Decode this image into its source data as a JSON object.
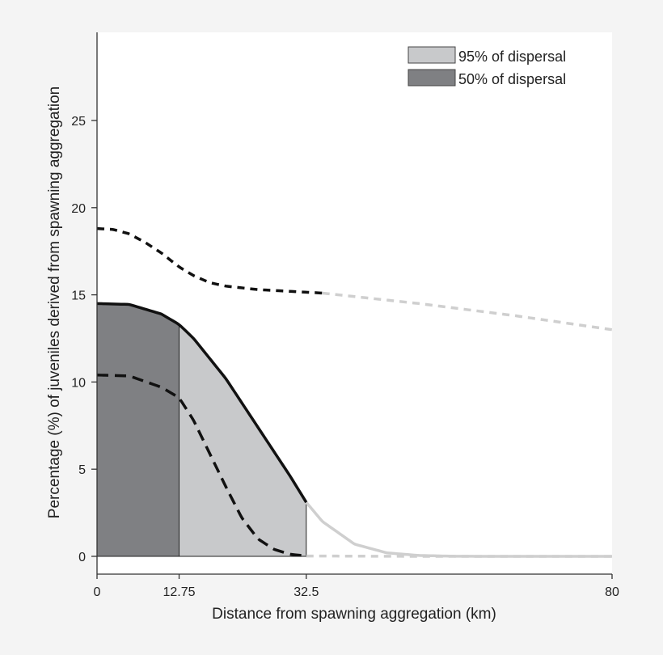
{
  "chart_data": {
    "type": "line",
    "xlabel": "Distance from spawning aggregation (km)",
    "ylabel": "Percentage (%) of juveniles derived from spawning aggregation",
    "xlim": [
      0,
      80
    ],
    "ylim": [
      0,
      30
    ],
    "x_ticks": [
      "0",
      "12.75",
      "32.5",
      "80"
    ],
    "y_ticks": [
      "0",
      "5",
      "10",
      "15",
      "20",
      "25"
    ],
    "grid": false,
    "legend_position": "top-right",
    "legend": [
      {
        "label": "95% of dispersal",
        "color": "#c8c9cb"
      },
      {
        "label": "50% of dispersal",
        "color": "#7f8083"
      }
    ],
    "shaded_regions": [
      {
        "label": "50% of dispersal",
        "x_range": [
          0,
          12.75
        ],
        "color": "#7f8083"
      },
      {
        "label": "95% of dispersal",
        "x_range": [
          12.75,
          32.5
        ],
        "color": "#c8c9cb"
      }
    ],
    "series": [
      {
        "style": "solid",
        "highlight_until": 32.5,
        "x": [
          0,
          5,
          10,
          12.75,
          15,
          20,
          25,
          30,
          32.5,
          35,
          40,
          45,
          50,
          55,
          60,
          80
        ],
        "y": [
          14.5,
          14.45,
          13.9,
          13.3,
          12.5,
          10.2,
          7.4,
          4.6,
          3.1,
          2.0,
          0.7,
          0.2,
          0.05,
          0.01,
          0,
          0
        ]
      },
      {
        "style": "dashed-upper",
        "highlight_until": 35,
        "x": [
          0,
          2.5,
          5,
          7.5,
          10,
          12.75,
          15,
          17.5,
          20,
          25,
          30,
          35,
          50,
          65,
          80
        ],
        "y": [
          18.8,
          18.75,
          18.5,
          18.0,
          17.4,
          16.6,
          16.1,
          15.7,
          15.5,
          15.3,
          15.2,
          15.1,
          14.5,
          13.8,
          13.0
        ]
      },
      {
        "style": "dashed-lower",
        "highlight_until": 32.5,
        "x": [
          0,
          5,
          10,
          12.75,
          15,
          17.5,
          20,
          22.5,
          25,
          27.5,
          30,
          32.5,
          50,
          80
        ],
        "y": [
          10.4,
          10.35,
          9.7,
          9.1,
          7.8,
          5.9,
          4.0,
          2.2,
          1.0,
          0.4,
          0.12,
          0.02,
          0,
          0
        ]
      }
    ]
  }
}
